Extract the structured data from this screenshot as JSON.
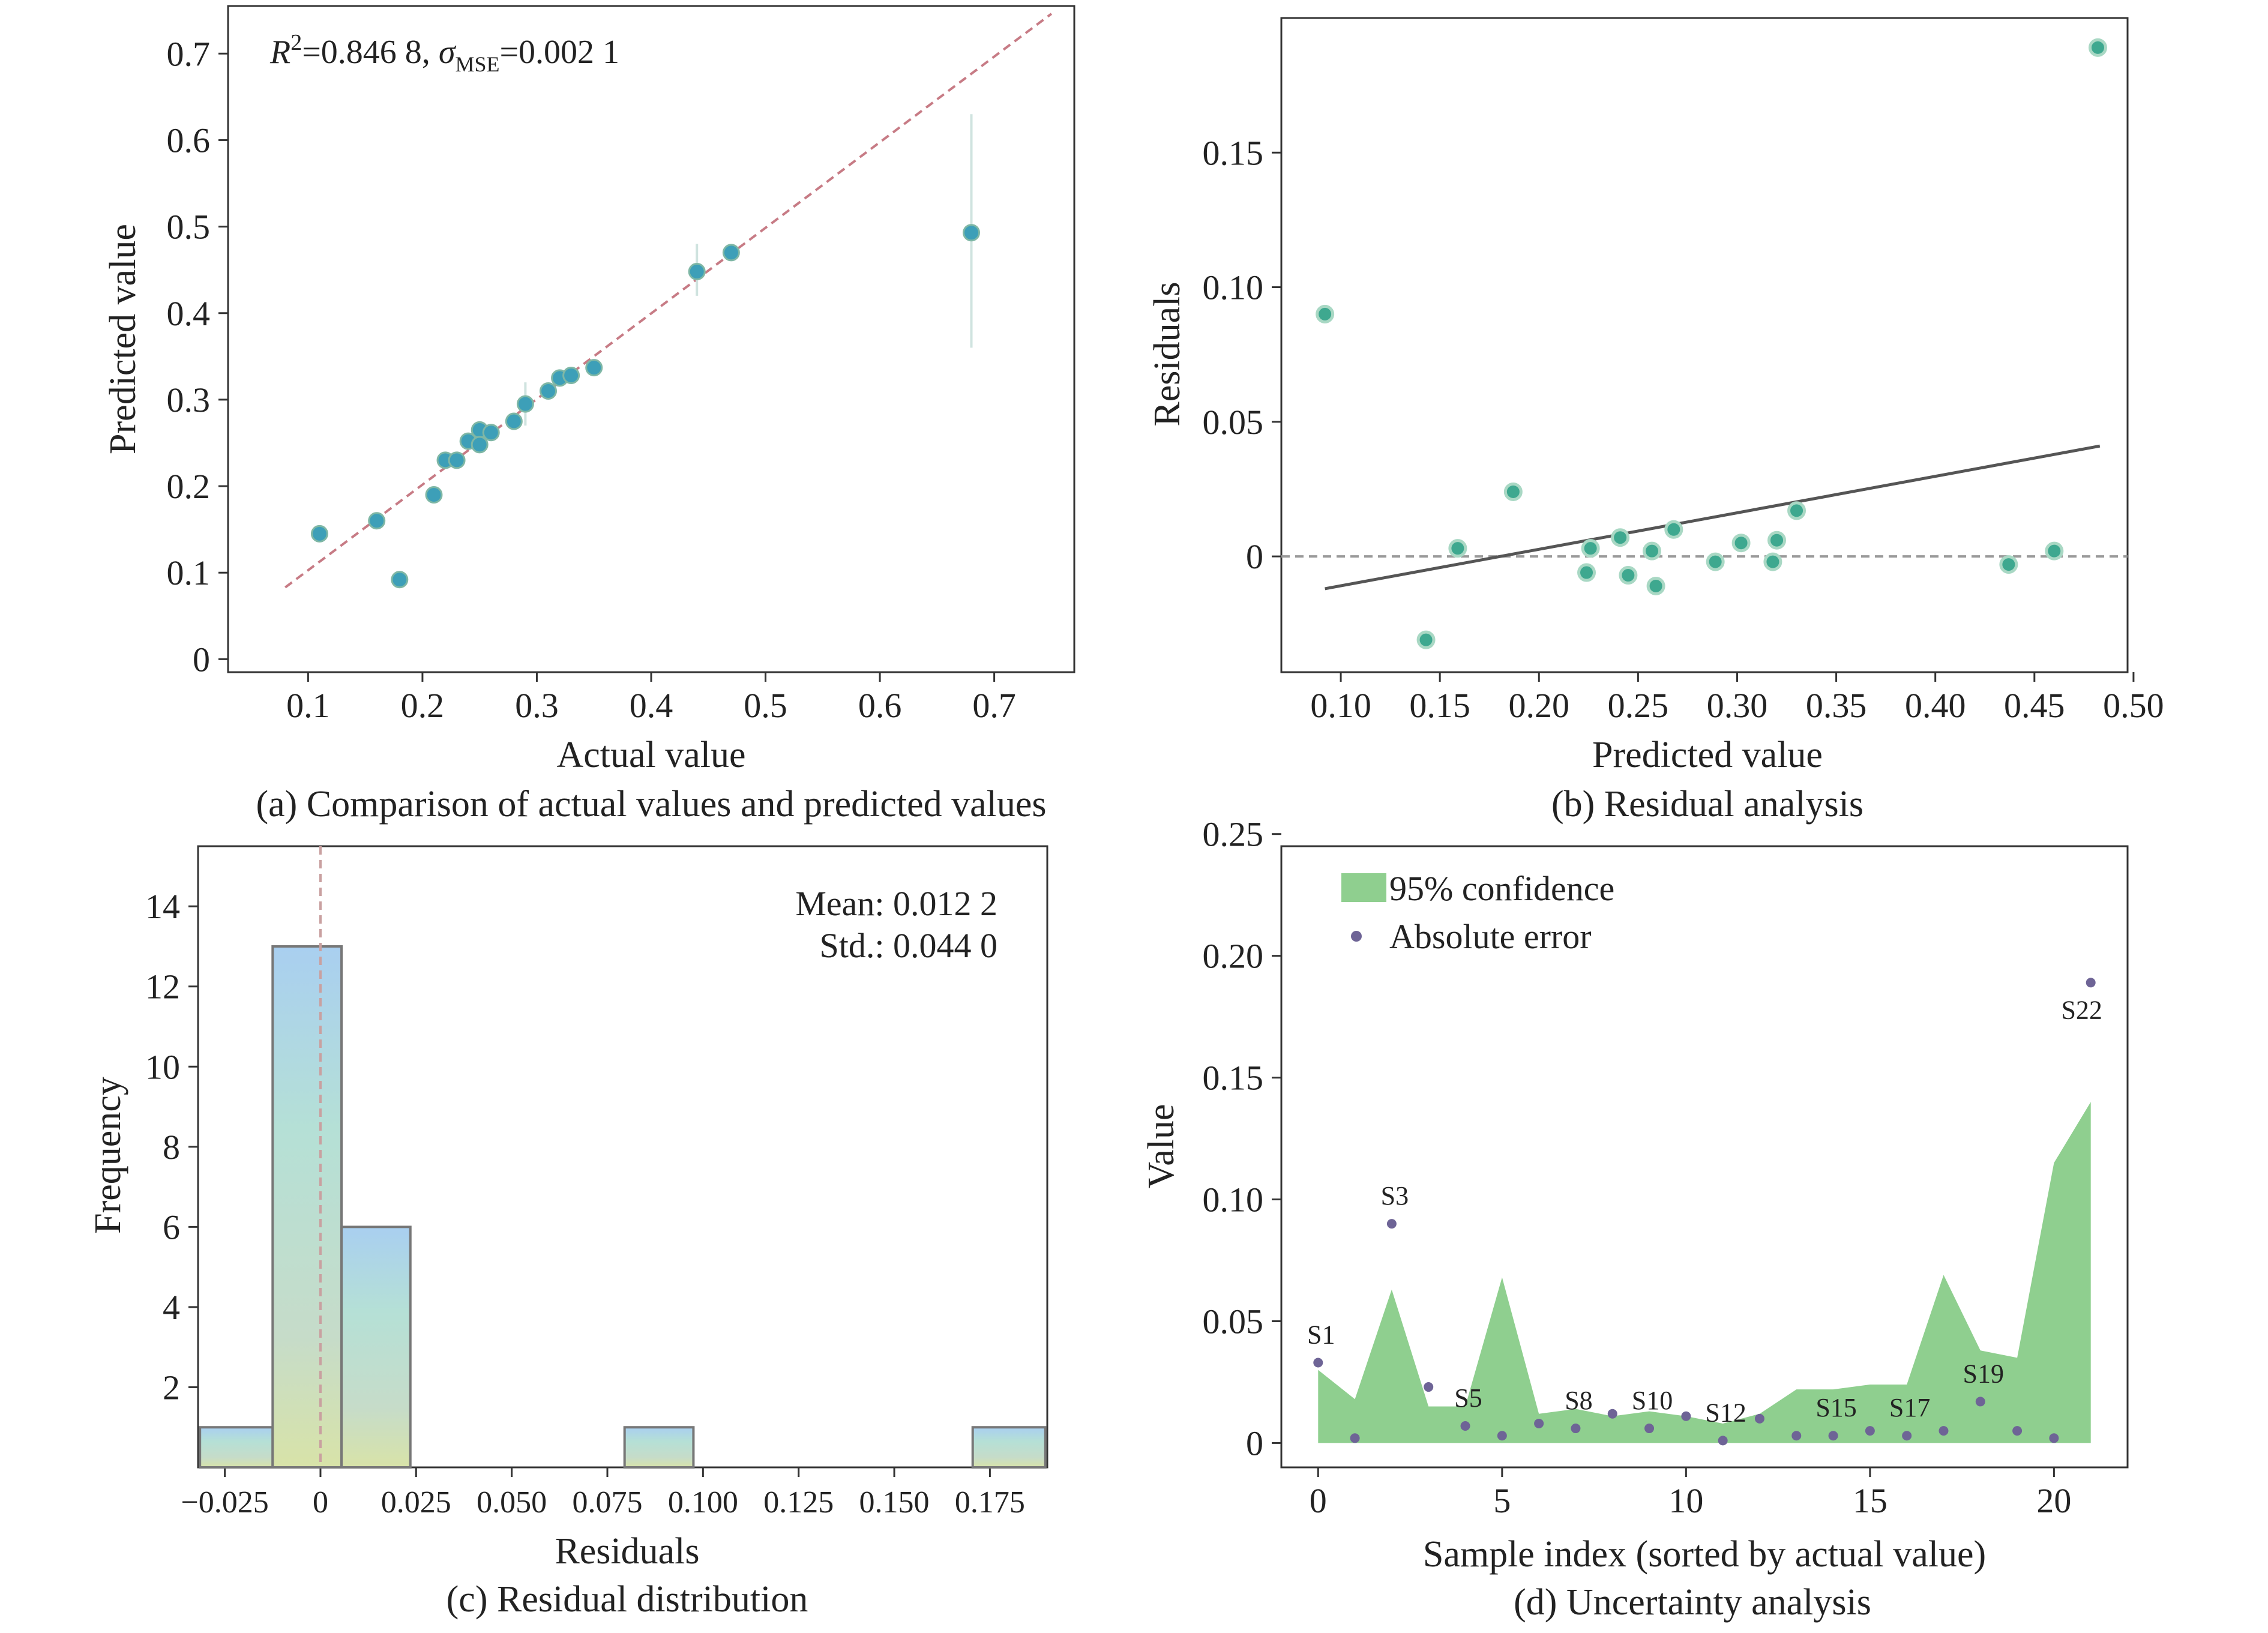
{
  "chart_data": [
    {
      "type": "scatter",
      "caption": "(a) Comparison of actual values and predicted values",
      "xlabel": "Actual value",
      "ylabel": "Predicted value",
      "xlim": [
        0.03,
        0.77
      ],
      "ylim": [
        -0.015,
        0.755
      ],
      "xticks": [
        "0.1",
        "0.2",
        "0.3",
        "0.4",
        "0.5",
        "0.6",
        "0.7"
      ],
      "yticks": [
        "0",
        "0.1",
        "0.2",
        "0.3",
        "0.4",
        "0.5",
        "0.6",
        "0.7"
      ],
      "annotation": {
        "r_label": "R",
        "r_sup": "2",
        "r_value": "=0.846 8, ",
        "sigma": "σ",
        "sigma_sub": "MSE",
        "sigma_value": "=0.002 1"
      },
      "reference_line": {
        "x": [
          0.08,
          0.75
        ],
        "y": [
          0.083,
          0.746
        ]
      },
      "points": [
        {
          "x": 0.11,
          "y": 0.145
        },
        {
          "x": 0.16,
          "y": 0.16
        },
        {
          "x": 0.18,
          "y": 0.092
        },
        {
          "x": 0.21,
          "y": 0.19
        },
        {
          "x": 0.22,
          "y": 0.23
        },
        {
          "x": 0.23,
          "y": 0.23
        },
        {
          "x": 0.24,
          "y": 0.252
        },
        {
          "x": 0.25,
          "y": 0.265
        },
        {
          "x": 0.25,
          "y": 0.248
        },
        {
          "x": 0.26,
          "y": 0.262
        },
        {
          "x": 0.28,
          "y": 0.275
        },
        {
          "x": 0.29,
          "y": 0.295
        },
        {
          "x": 0.31,
          "y": 0.31
        },
        {
          "x": 0.32,
          "y": 0.325
        },
        {
          "x": 0.33,
          "y": 0.328
        },
        {
          "x": 0.35,
          "y": 0.337
        },
        {
          "x": 0.44,
          "y": 0.448
        },
        {
          "x": 0.47,
          "y": 0.47
        },
        {
          "x": 0.68,
          "y": 0.493
        }
      ],
      "error_bars": [
        {
          "x": 0.29,
          "y1": 0.27,
          "y2": 0.32
        },
        {
          "x": 0.44,
          "y1": 0.42,
          "y2": 0.48
        },
        {
          "x": 0.68,
          "y1": 0.36,
          "y2": 0.63
        }
      ]
    },
    {
      "type": "scatter",
      "caption": "(b) Residual analysis",
      "xlabel": "Predicted value",
      "ylabel": "Residuals",
      "xlim": [
        0.07,
        0.497
      ],
      "ylim": [
        -0.043,
        0.2
      ],
      "xticks": [
        "0.10",
        "0.15",
        "0.20",
        "0.25",
        "0.30",
        "0.35",
        "0.40",
        "0.45",
        "0.50"
      ],
      "yticks": [
        "0",
        "0.05",
        "0.10",
        "0.15"
      ],
      "trend_line": {
        "x": [
          0.092,
          0.483
        ],
        "y": [
          -0.012,
          0.041
        ]
      },
      "zero_line": 0,
      "points": [
        {
          "x": 0.092,
          "y": 0.09
        },
        {
          "x": 0.143,
          "y": -0.031
        },
        {
          "x": 0.159,
          "y": 0.003
        },
        {
          "x": 0.187,
          "y": 0.024
        },
        {
          "x": 0.224,
          "y": -0.006
        },
        {
          "x": 0.226,
          "y": 0.003
        },
        {
          "x": 0.241,
          "y": 0.007
        },
        {
          "x": 0.245,
          "y": -0.007
        },
        {
          "x": 0.257,
          "y": 0.002
        },
        {
          "x": 0.259,
          "y": -0.011
        },
        {
          "x": 0.268,
          "y": 0.01
        },
        {
          "x": 0.289,
          "y": -0.002
        },
        {
          "x": 0.302,
          "y": 0.005
        },
        {
          "x": 0.318,
          "y": -0.002
        },
        {
          "x": 0.32,
          "y": 0.006
        },
        {
          "x": 0.33,
          "y": 0.017
        },
        {
          "x": 0.437,
          "y": -0.003
        },
        {
          "x": 0.46,
          "y": 0.002
        },
        {
          "x": 0.482,
          "y": 0.189
        }
      ]
    },
    {
      "type": "bar",
      "caption": "(c) Residual distribution",
      "xlabel": "Residuals",
      "ylabel": "Frequency",
      "xlim": [
        -0.032,
        0.19
      ],
      "ylim": [
        0,
        15.5
      ],
      "xticks": [
        "−0.025",
        "0",
        "0.025",
        "0.050",
        "0.075",
        "0.100",
        "0.125",
        "0.150",
        "0.175"
      ],
      "xtick_values": [
        -0.025,
        0,
        0.025,
        0.05,
        0.075,
        0.1,
        0.125,
        0.15,
        0.175
      ],
      "yticks": [
        "2",
        "4",
        "6",
        "8",
        "10",
        "12",
        "14"
      ],
      "mean_label": "Mean: 0.012 2",
      "std_label": "Std.: 0.044 0",
      "zero_line": 0,
      "bins": [
        {
          "x0": -0.0315,
          "x1": -0.0125,
          "count": 1
        },
        {
          "x0": -0.0125,
          "x1": 0.0055,
          "count": 13
        },
        {
          "x0": 0.0055,
          "x1": 0.0235,
          "count": 6
        },
        {
          "x0": 0.0795,
          "x1": 0.0975,
          "count": 1
        },
        {
          "x0": 0.1705,
          "x1": 0.1895,
          "count": 1
        }
      ]
    },
    {
      "type": "area",
      "caption": "(d) Uncertainty analysis",
      "xlabel": "Sample index (sorted by actual value)",
      "ylabel": "Value",
      "xlim": [
        -1,
        22
      ],
      "ylim": [
        -0.01,
        0.245
      ],
      "xticks": [
        "0",
        "5",
        "10",
        "15",
        "20"
      ],
      "xtick_values": [
        0,
        5,
        10,
        15,
        20
      ],
      "yticks": [
        "0",
        "0.05",
        "0.10",
        "0.15",
        "0.20",
        "0.25"
      ],
      "legend_position": "top-left",
      "series": [
        {
          "name": "95% confidence",
          "color": "#8fcf8f",
          "x": [
            0,
            1,
            2,
            3,
            4,
            5,
            6,
            7,
            8,
            9,
            10,
            11,
            12,
            13,
            14,
            15,
            16,
            17,
            18,
            19,
            20,
            21
          ],
          "values": [
            0.03,
            0.018,
            0.063,
            0.015,
            0.015,
            0.068,
            0.012,
            0.014,
            0.011,
            0.013,
            0.011,
            0.008,
            0.012,
            0.022,
            0.022,
            0.024,
            0.024,
            0.069,
            0.038,
            0.035,
            0.115,
            0.14
          ]
        },
        {
          "name": "Absolute error",
          "color": "#6e6496",
          "x": [
            0,
            1,
            2,
            3,
            4,
            5,
            6,
            7,
            8,
            9,
            10,
            11,
            12,
            13,
            14,
            15,
            16,
            17,
            18,
            19,
            20,
            21
          ],
          "values": [
            0.033,
            0.002,
            0.09,
            0.023,
            0.007,
            0.003,
            0.008,
            0.006,
            0.012,
            0.006,
            0.011,
            0.001,
            0.01,
            0.003,
            0.003,
            0.005,
            0.003,
            0.005,
            0.017,
            0.005,
            0.002,
            0.189
          ]
        }
      ],
      "point_labels": [
        {
          "x": 0,
          "text": "S1"
        },
        {
          "x": 2,
          "text": "S3"
        },
        {
          "x": 4,
          "text": "S5"
        },
        {
          "x": 7,
          "text": "S8"
        },
        {
          "x": 9,
          "text": "S10"
        },
        {
          "x": 11,
          "text": "S12"
        },
        {
          "x": 14,
          "text": "S15"
        },
        {
          "x": 16,
          "text": "S17"
        },
        {
          "x": 18,
          "text": "S19"
        },
        {
          "x": 21,
          "text": "S22"
        }
      ]
    }
  ]
}
